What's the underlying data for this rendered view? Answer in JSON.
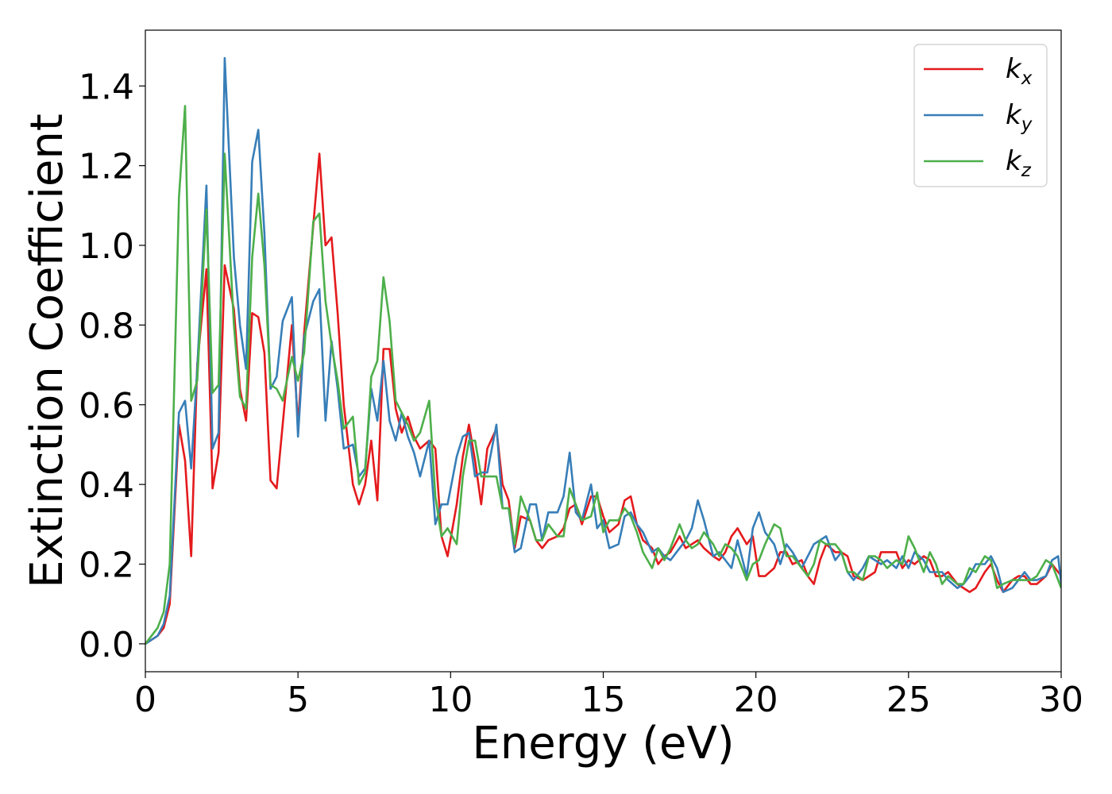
{
  "chart_data": {
    "type": "line",
    "title": "",
    "xlabel": "Energy (eV)",
    "ylabel": "Extinction Coefficient",
    "xlim": [
      0,
      30
    ],
    "ylim": [
      -0.07,
      1.54
    ],
    "xticks": [
      0,
      5,
      10,
      15,
      20,
      25,
      30
    ],
    "yticks": [
      0.0,
      0.2,
      0.4,
      0.6,
      0.8,
      1.0,
      1.2,
      1.4
    ],
    "xtick_labels": [
      "0",
      "5",
      "10",
      "15",
      "20",
      "25",
      "30"
    ],
    "ytick_labels": [
      "0.0",
      "0.2",
      "0.4",
      "0.6",
      "0.8",
      "1.0",
      "1.2",
      "1.4"
    ],
    "grid": false,
    "legend_position": "top-right",
    "series": [
      {
        "name": "k_x",
        "label_main": "k",
        "label_sub": "x",
        "color": "#e41a1c",
        "x": [
          0,
          0.4,
          0.6,
          0.8,
          1.1,
          1.3,
          1.5,
          1.7,
          2.0,
          2.2,
          2.4,
          2.6,
          2.9,
          3.1,
          3.3,
          3.5,
          3.7,
          3.9,
          4.1,
          4.3,
          4.5,
          4.8,
          5.0,
          5.2,
          5.5,
          5.7,
          5.9,
          6.1,
          6.3,
          6.5,
          6.8,
          7.0,
          7.2,
          7.4,
          7.6,
          7.8,
          8.0,
          8.2,
          8.4,
          8.6,
          8.8,
          9.0,
          9.3,
          9.5,
          9.7,
          9.9,
          10.2,
          10.4,
          10.6,
          10.8,
          11.0,
          11.2,
          11.5,
          11.7,
          11.9,
          12.1,
          12.3,
          12.6,
          12.8,
          13.0,
          13.2,
          13.5,
          13.7,
          13.9,
          14.1,
          14.3,
          14.6,
          14.8,
          15.0,
          15.2,
          15.5,
          15.7,
          15.9,
          16.1,
          16.3,
          16.6,
          16.8,
          17.0,
          17.2,
          17.5,
          17.7,
          17.9,
          18.1,
          18.3,
          18.6,
          18.8,
          19.0,
          19.2,
          19.4,
          19.7,
          19.9,
          20.1,
          20.3,
          20.6,
          20.8,
          21.0,
          21.2,
          21.5,
          21.7,
          21.9,
          22.1,
          22.3,
          22.6,
          22.8,
          23.0,
          23.2,
          23.5,
          23.7,
          23.9,
          24.1,
          24.3,
          24.6,
          24.8,
          25.0,
          25.2,
          25.5,
          25.7,
          25.9,
          26.1,
          26.3,
          26.6,
          26.8,
          27.0,
          27.2,
          27.5,
          27.7,
          27.9,
          28.1,
          28.4,
          28.6,
          28.8,
          29.0,
          29.2,
          29.5,
          29.7,
          29.9,
          30.0
        ],
        "values": [
          0,
          0.02,
          0.04,
          0.1,
          0.55,
          0.46,
          0.22,
          0.7,
          0.94,
          0.39,
          0.48,
          0.95,
          0.84,
          0.64,
          0.56,
          0.83,
          0.82,
          0.73,
          0.41,
          0.39,
          0.55,
          0.8,
          0.55,
          0.78,
          1.05,
          1.23,
          1.0,
          1.02,
          0.83,
          0.6,
          0.4,
          0.35,
          0.4,
          0.51,
          0.36,
          0.74,
          0.74,
          0.59,
          0.53,
          0.57,
          0.52,
          0.49,
          0.51,
          0.49,
          0.27,
          0.22,
          0.35,
          0.47,
          0.55,
          0.46,
          0.35,
          0.49,
          0.54,
          0.4,
          0.36,
          0.24,
          0.32,
          0.31,
          0.26,
          0.24,
          0.26,
          0.27,
          0.29,
          0.34,
          0.35,
          0.3,
          0.37,
          0.37,
          0.32,
          0.28,
          0.3,
          0.36,
          0.37,
          0.3,
          0.26,
          0.24,
          0.2,
          0.22,
          0.23,
          0.27,
          0.24,
          0.25,
          0.26,
          0.24,
          0.22,
          0.21,
          0.23,
          0.27,
          0.29,
          0.25,
          0.27,
          0.17,
          0.17,
          0.19,
          0.23,
          0.23,
          0.2,
          0.21,
          0.17,
          0.15,
          0.21,
          0.25,
          0.23,
          0.23,
          0.22,
          0.17,
          0.16,
          0.17,
          0.18,
          0.23,
          0.23,
          0.23,
          0.19,
          0.21,
          0.2,
          0.22,
          0.21,
          0.17,
          0.17,
          0.18,
          0.15,
          0.14,
          0.13,
          0.14,
          0.18,
          0.2,
          0.16,
          0.13,
          0.16,
          0.17,
          0.17,
          0.15,
          0.15,
          0.17,
          0.2,
          0.18,
          0.17
        ]
      },
      {
        "name": "k_y",
        "label_main": "k",
        "label_sub": "y",
        "color": "#377eb8",
        "x": [
          0,
          0.4,
          0.6,
          0.8,
          1.1,
          1.3,
          1.5,
          1.7,
          2.0,
          2.2,
          2.4,
          2.6,
          2.9,
          3.1,
          3.3,
          3.5,
          3.7,
          3.9,
          4.1,
          4.3,
          4.5,
          4.8,
          5.0,
          5.2,
          5.5,
          5.7,
          5.9,
          6.1,
          6.3,
          6.5,
          6.8,
          7.0,
          7.2,
          7.4,
          7.6,
          7.8,
          8.0,
          8.2,
          8.4,
          8.6,
          8.8,
          9.0,
          9.3,
          9.5,
          9.7,
          9.9,
          10.2,
          10.4,
          10.6,
          10.8,
          11.0,
          11.2,
          11.5,
          11.7,
          11.9,
          12.1,
          12.3,
          12.6,
          12.8,
          13.0,
          13.2,
          13.5,
          13.7,
          13.9,
          14.1,
          14.3,
          14.6,
          14.8,
          15.0,
          15.2,
          15.5,
          15.7,
          15.9,
          16.1,
          16.3,
          16.6,
          16.8,
          17.0,
          17.2,
          17.5,
          17.7,
          17.9,
          18.1,
          18.3,
          18.6,
          18.8,
          19.0,
          19.2,
          19.4,
          19.7,
          19.9,
          20.1,
          20.3,
          20.6,
          20.8,
          21.0,
          21.2,
          21.5,
          21.7,
          21.9,
          22.1,
          22.3,
          22.6,
          22.8,
          23.0,
          23.2,
          23.5,
          23.7,
          23.9,
          24.1,
          24.3,
          24.6,
          24.8,
          25.0,
          25.2,
          25.5,
          25.7,
          25.9,
          26.1,
          26.3,
          26.6,
          26.8,
          27.0,
          27.2,
          27.5,
          27.7,
          27.9,
          28.1,
          28.4,
          28.6,
          28.8,
          29.0,
          29.2,
          29.5,
          29.7,
          29.9,
          30.0
        ],
        "values": [
          0,
          0.02,
          0.05,
          0.12,
          0.58,
          0.61,
          0.44,
          0.69,
          1.15,
          0.49,
          0.53,
          1.47,
          0.97,
          0.8,
          0.69,
          1.21,
          1.29,
          1.03,
          0.64,
          0.67,
          0.81,
          0.87,
          0.52,
          0.77,
          0.86,
          0.89,
          0.56,
          0.76,
          0.64,
          0.49,
          0.5,
          0.42,
          0.44,
          0.64,
          0.56,
          0.71,
          0.56,
          0.51,
          0.58,
          0.52,
          0.48,
          0.42,
          0.51,
          0.3,
          0.35,
          0.35,
          0.47,
          0.52,
          0.53,
          0.42,
          0.43,
          0.43,
          0.55,
          0.34,
          0.34,
          0.23,
          0.24,
          0.35,
          0.35,
          0.26,
          0.33,
          0.33,
          0.37,
          0.48,
          0.33,
          0.31,
          0.4,
          0.29,
          0.31,
          0.24,
          0.25,
          0.32,
          0.33,
          0.3,
          0.28,
          0.23,
          0.24,
          0.22,
          0.21,
          0.24,
          0.26,
          0.29,
          0.36,
          0.31,
          0.22,
          0.23,
          0.21,
          0.19,
          0.26,
          0.17,
          0.29,
          0.33,
          0.28,
          0.25,
          0.2,
          0.25,
          0.23,
          0.19,
          0.22,
          0.25,
          0.26,
          0.27,
          0.21,
          0.23,
          0.18,
          0.16,
          0.19,
          0.22,
          0.21,
          0.2,
          0.21,
          0.19,
          0.22,
          0.19,
          0.23,
          0.21,
          0.18,
          0.18,
          0.18,
          0.16,
          0.14,
          0.15,
          0.17,
          0.2,
          0.2,
          0.22,
          0.19,
          0.13,
          0.14,
          0.16,
          0.18,
          0.16,
          0.16,
          0.17,
          0.21,
          0.22,
          0.15
        ]
      },
      {
        "name": "k_z",
        "label_main": "k",
        "label_sub": "z",
        "color": "#4daf4a",
        "x": [
          0,
          0.4,
          0.6,
          0.8,
          1.1,
          1.3,
          1.5,
          1.7,
          2.0,
          2.2,
          2.4,
          2.6,
          2.9,
          3.1,
          3.3,
          3.5,
          3.7,
          3.9,
          4.1,
          4.3,
          4.5,
          4.8,
          5.0,
          5.2,
          5.5,
          5.7,
          5.9,
          6.1,
          6.3,
          6.5,
          6.8,
          7.0,
          7.2,
          7.4,
          7.6,
          7.8,
          8.0,
          8.2,
          8.4,
          8.6,
          8.8,
          9.0,
          9.3,
          9.5,
          9.7,
          9.9,
          10.2,
          10.4,
          10.6,
          10.8,
          11.0,
          11.2,
          11.5,
          11.7,
          11.9,
          12.1,
          12.3,
          12.6,
          12.8,
          13.0,
          13.2,
          13.5,
          13.7,
          13.9,
          14.1,
          14.3,
          14.6,
          14.8,
          15.0,
          15.2,
          15.5,
          15.7,
          15.9,
          16.1,
          16.3,
          16.6,
          16.8,
          17.0,
          17.2,
          17.5,
          17.7,
          17.9,
          18.1,
          18.3,
          18.6,
          18.8,
          19.0,
          19.2,
          19.4,
          19.7,
          19.9,
          20.1,
          20.3,
          20.6,
          20.8,
          21.0,
          21.2,
          21.5,
          21.7,
          21.9,
          22.1,
          22.3,
          22.6,
          22.8,
          23.0,
          23.2,
          23.5,
          23.7,
          23.9,
          24.1,
          24.3,
          24.6,
          24.8,
          25.0,
          25.2,
          25.5,
          25.7,
          25.9,
          26.1,
          26.3,
          26.6,
          26.8,
          27.0,
          27.2,
          27.5,
          27.7,
          27.9,
          28.1,
          28.4,
          28.6,
          28.8,
          29.0,
          29.2,
          29.5,
          29.7,
          29.9,
          30.0
        ],
        "values": [
          0,
          0.04,
          0.08,
          0.2,
          1.12,
          1.35,
          0.61,
          0.66,
          1.09,
          0.63,
          0.65,
          1.23,
          0.8,
          0.62,
          0.59,
          0.97,
          1.13,
          0.95,
          0.65,
          0.64,
          0.61,
          0.72,
          0.66,
          0.73,
          1.06,
          1.08,
          0.86,
          0.75,
          0.66,
          0.54,
          0.57,
          0.4,
          0.43,
          0.67,
          0.71,
          0.92,
          0.81,
          0.61,
          0.58,
          0.55,
          0.51,
          0.53,
          0.61,
          0.37,
          0.27,
          0.29,
          0.25,
          0.42,
          0.51,
          0.51,
          0.42,
          0.42,
          0.42,
          0.34,
          0.34,
          0.25,
          0.37,
          0.31,
          0.26,
          0.26,
          0.3,
          0.27,
          0.27,
          0.39,
          0.35,
          0.31,
          0.32,
          0.38,
          0.28,
          0.31,
          0.31,
          0.34,
          0.32,
          0.28,
          0.23,
          0.19,
          0.24,
          0.21,
          0.24,
          0.3,
          0.26,
          0.24,
          0.25,
          0.28,
          0.25,
          0.22,
          0.25,
          0.24,
          0.22,
          0.16,
          0.2,
          0.21,
          0.25,
          0.3,
          0.29,
          0.22,
          0.22,
          0.19,
          0.17,
          0.2,
          0.26,
          0.25,
          0.25,
          0.23,
          0.18,
          0.18,
          0.16,
          0.22,
          0.22,
          0.21,
          0.19,
          0.21,
          0.2,
          0.27,
          0.24,
          0.18,
          0.23,
          0.2,
          0.15,
          0.17,
          0.15,
          0.15,
          0.19,
          0.18,
          0.22,
          0.21,
          0.14,
          0.15,
          0.16,
          0.16,
          0.16,
          0.16,
          0.17,
          0.21,
          0.2,
          0.16,
          0.14
        ]
      }
    ]
  }
}
